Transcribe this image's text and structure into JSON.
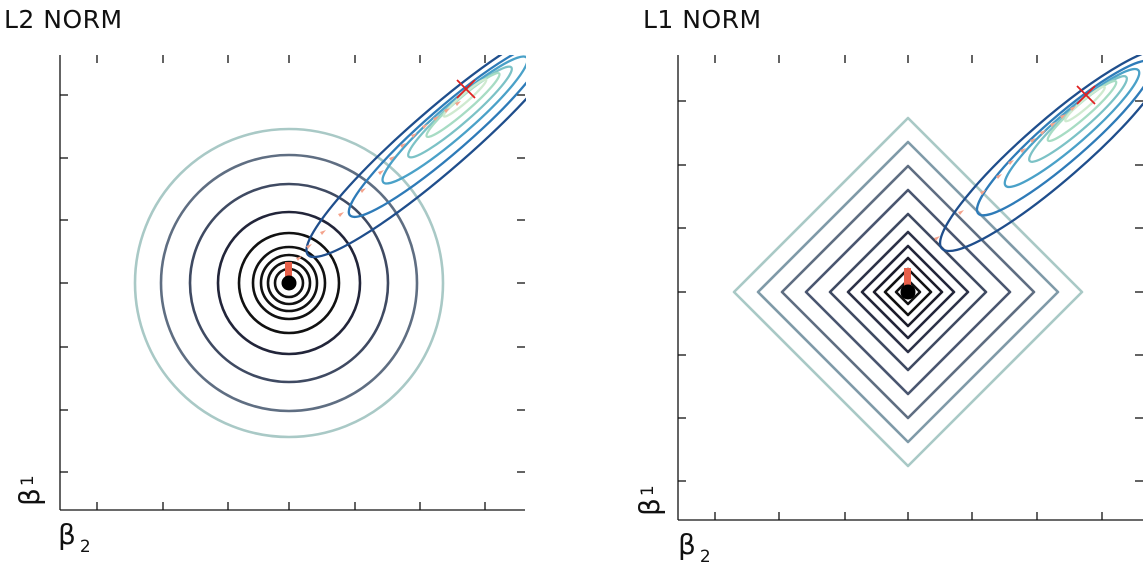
{
  "panels": [
    {
      "id": "l2",
      "title": "L2 NORM",
      "ylabel": "β",
      "ylabel_sub": "1",
      "xlabel": "β",
      "xlabel_sub": "2"
    },
    {
      "id": "l1",
      "title": "L1 NORM",
      "ylabel": "β",
      "ylabel_sub": "1",
      "xlabel": "β",
      "xlabel_sub": "2"
    }
  ],
  "colors": {
    "penalty_contours": [
      "#111111",
      "#111111",
      "#1b1b2a",
      "#22253a",
      "#2d3248",
      "#3f4a62",
      "#5f6e82",
      "#a9c9c6"
    ],
    "loss_contours": [
      "#1f4e8c",
      "#2e7bb8",
      "#4aa1c8",
      "#7cc2c6",
      "#a7dcc4",
      "#cfead0"
    ],
    "path_marker": "#f4a38c",
    "optimum_marker": "#e02020",
    "origin_dot": "#000000",
    "axis": "#111111"
  },
  "markers": {
    "unregularized_optimum": "×",
    "origin": "●"
  }
}
